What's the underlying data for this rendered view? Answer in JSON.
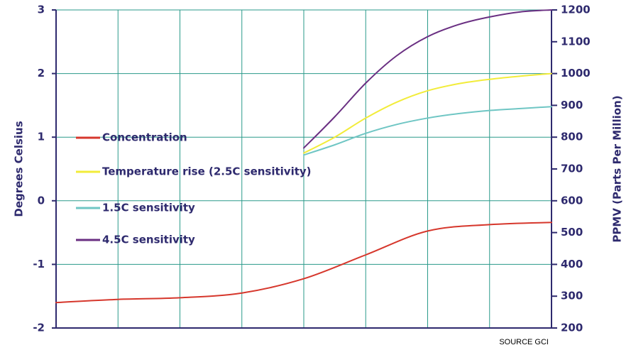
{
  "chart_data": {
    "type": "line",
    "title": "",
    "xlabel": "",
    "ylabel_left": "Degrees Celsius",
    "ylabel_right": "PPMV (Parts Per Million)",
    "ylim_left": [
      -2,
      3
    ],
    "ylim_right": [
      200,
      1200
    ],
    "y_ticks_left": [
      "3",
      "2",
      "1",
      "0",
      "-1",
      "-2"
    ],
    "y_ticks_right": [
      "1200",
      "1100",
      "1000",
      "900",
      "800",
      "700",
      "600",
      "500",
      "400",
      "300",
      "200"
    ],
    "x_divisions": 8,
    "grid": true,
    "legend_position": "left-middle",
    "source": "SOURCE GCI",
    "series": [
      {
        "name": "Concentration",
        "axis": "right",
        "color": "#d6372c",
        "x": [
          0,
          1,
          2,
          3,
          4,
          5,
          6,
          7,
          8
        ],
        "values": [
          280,
          290,
          295,
          310,
          355,
          430,
          505,
          525,
          532
        ]
      },
      {
        "name": "Temperature rise (2.5C sensitivity)",
        "axis": "left",
        "color": "#f2ec3a",
        "x": [
          4,
          4.5,
          5,
          5.5,
          6,
          6.5,
          7,
          7.5,
          8
        ],
        "values": [
          0.75,
          1.0,
          1.3,
          1.55,
          1.73,
          1.84,
          1.91,
          1.96,
          2.0
        ]
      },
      {
        "name": "1.5C sensitivity",
        "axis": "left",
        "color": "#6fc6c4",
        "x": [
          4,
          4.5,
          5,
          5.5,
          6,
          6.5,
          7,
          7.5,
          8
        ],
        "values": [
          0.72,
          0.88,
          1.06,
          1.2,
          1.3,
          1.37,
          1.42,
          1.45,
          1.48
        ]
      },
      {
        "name": "4.5C sensitivity",
        "axis": "left",
        "color": "#6a2f82",
        "x": [
          4,
          4.5,
          5,
          5.5,
          6,
          6.5,
          7,
          7.5,
          8
        ],
        "values": [
          0.83,
          1.32,
          1.85,
          2.28,
          2.58,
          2.77,
          2.89,
          2.97,
          3.0
        ]
      }
    ]
  }
}
